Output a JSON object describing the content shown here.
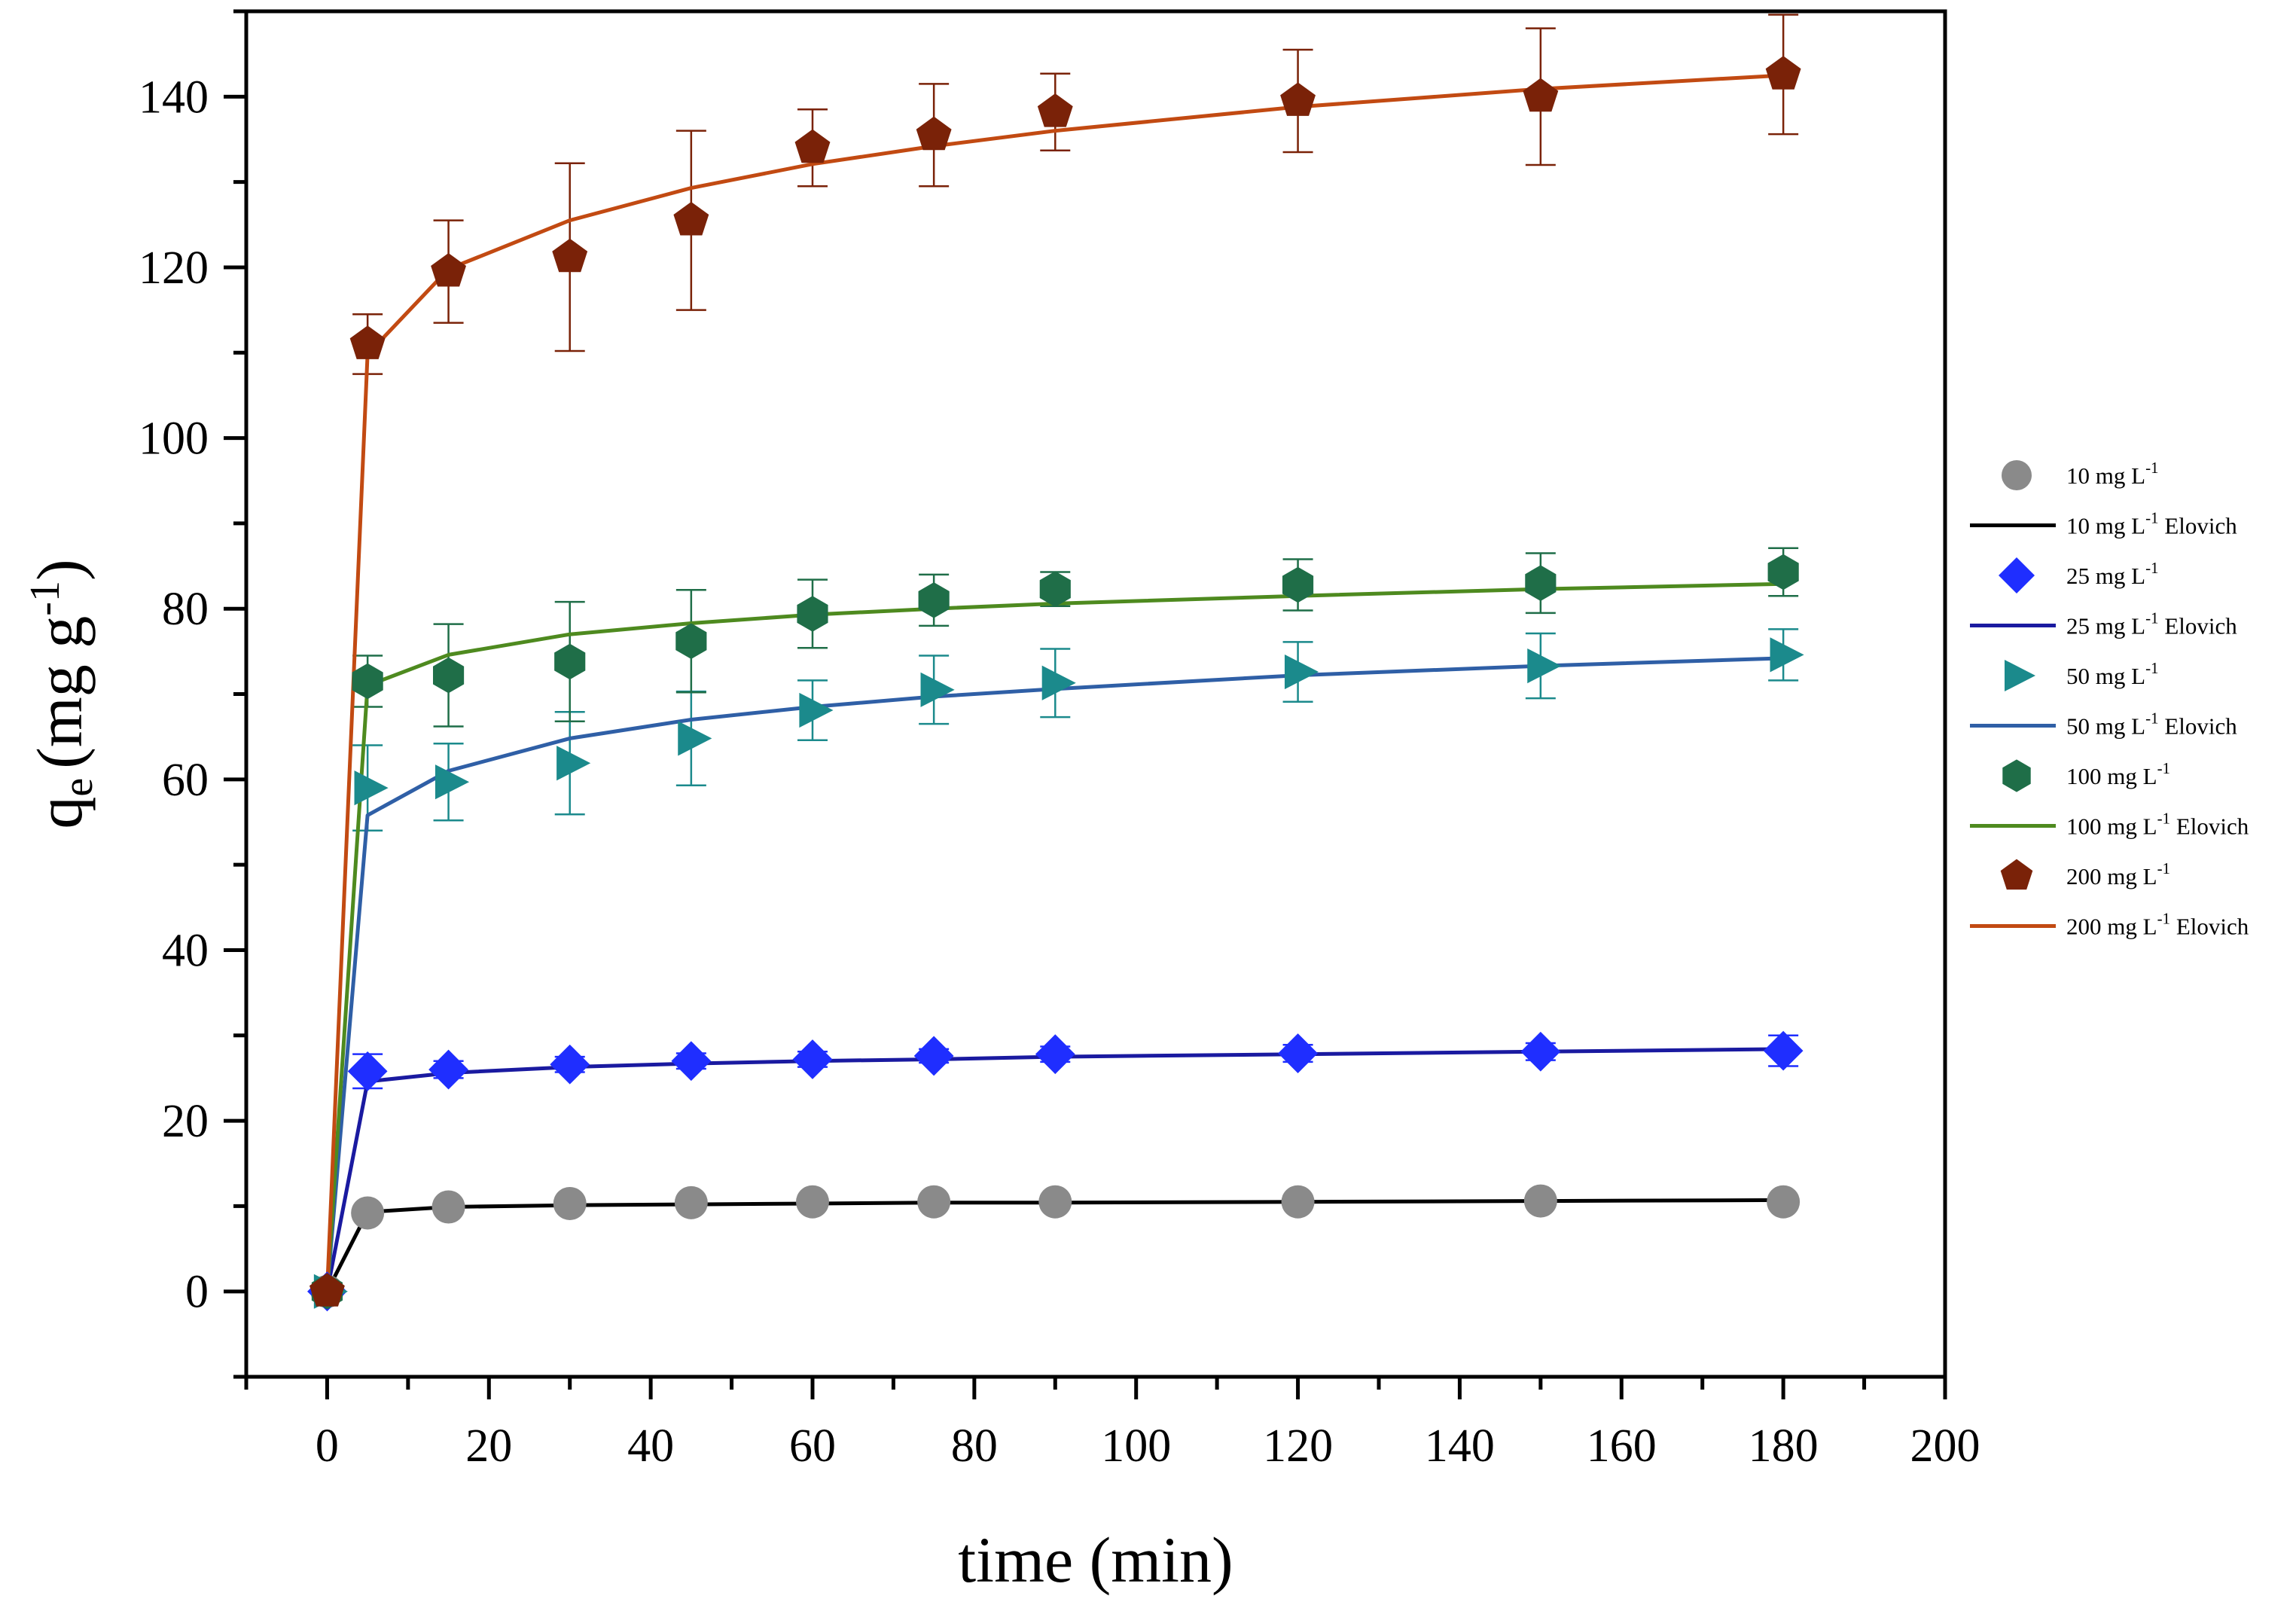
{
  "chart_data": {
    "type": "scatter",
    "title": "",
    "xlabel": "time (min)",
    "ylabel": {
      "main": "q",
      "sub": "e",
      "units_open": "(mg g",
      "units_sup": "-1",
      "units_close": ")"
    },
    "xlim": [
      -10,
      200
    ],
    "ylim": [
      -10,
      150
    ],
    "xticks": [
      0,
      20,
      40,
      60,
      80,
      100,
      120,
      140,
      160,
      180,
      200
    ],
    "yticks": [
      0,
      20,
      40,
      60,
      80,
      100,
      120,
      140
    ],
    "legend_position": "right",
    "x": [
      0,
      5,
      15,
      30,
      45,
      60,
      75,
      90,
      120,
      150,
      180
    ],
    "series": [
      {
        "name": "10 mg L-1",
        "legend_label": {
          "text": "10 mg L",
          "sup": "-1",
          "suffix": ""
        },
        "fit_label": {
          "text": "10 mg L",
          "sup": "-1",
          "suffix": " Elovich"
        },
        "marker": "circle",
        "color": "#8a8a8a",
        "line_color": "#000000",
        "values": [
          0,
          9.2,
          9.9,
          10.3,
          10.4,
          10.5,
          10.5,
          10.5,
          10.5,
          10.6,
          10.5
        ],
        "errors": [
          0,
          0,
          0,
          0,
          0,
          0,
          0,
          0,
          0,
          0,
          0
        ],
        "fit": [
          0,
          9.3,
          9.9,
          10.1,
          10.2,
          10.3,
          10.4,
          10.4,
          10.5,
          10.6,
          10.7
        ]
      },
      {
        "name": "25 mg L-1",
        "legend_label": {
          "text": "25 mg L",
          "sup": "-1",
          "suffix": ""
        },
        "fit_label": {
          "text": "25 mg L",
          "sup": "-1",
          "suffix": " Elovich"
        },
        "marker": "diamond",
        "color": "#1f2eff",
        "line_color": "#1a1aa0",
        "values": [
          0,
          25.8,
          26.0,
          26.6,
          27.0,
          27.2,
          27.6,
          27.8,
          27.9,
          28.1,
          28.2
        ],
        "errors": [
          0,
          2.0,
          1.0,
          0.9,
          0.9,
          0.9,
          0.8,
          0.9,
          1.0,
          1.0,
          1.8
        ],
        "fit": [
          0,
          24.6,
          25.6,
          26.3,
          26.7,
          27.0,
          27.2,
          27.5,
          27.8,
          28.1,
          28.4
        ]
      },
      {
        "name": "50 mg L-1",
        "legend_label": {
          "text": "50 mg L",
          "sup": "-1",
          "suffix": ""
        },
        "fit_label": {
          "text": "50 mg L",
          "sup": "-1",
          "suffix": " Elovich"
        },
        "marker": "triangle-right",
        "color": "#1b8a8c",
        "line_color": "#2f5fa6",
        "values": [
          0,
          59.0,
          59.7,
          61.9,
          64.8,
          68.1,
          70.5,
          71.3,
          72.6,
          73.3,
          74.6
        ],
        "errors": [
          0,
          5.0,
          4.5,
          6.0,
          5.5,
          3.5,
          4.0,
          4.0,
          3.5,
          3.8,
          3.0
        ],
        "fit": [
          0,
          55.8,
          61.0,
          64.8,
          67.0,
          68.5,
          69.7,
          70.6,
          72.2,
          73.3,
          74.2
        ]
      },
      {
        "name": "100 mg L-1",
        "legend_label": {
          "text": "100 mg L",
          "sup": "-1",
          "suffix": ""
        },
        "fit_label": {
          "text": "100 mg L",
          "sup": "-1",
          "suffix": " Elovich"
        },
        "marker": "hexagon",
        "color": "#1f6e48",
        "line_color": "#4e8a1f",
        "values": [
          0,
          71.5,
          72.2,
          73.8,
          76.2,
          79.4,
          81.0,
          82.3,
          82.8,
          83.0,
          84.3
        ],
        "errors": [
          0,
          3.0,
          6.0,
          7.0,
          6.0,
          4.0,
          3.0,
          2.0,
          3.0,
          3.5,
          2.8
        ],
        "fit": [
          0,
          71.0,
          74.6,
          77.0,
          78.3,
          79.3,
          80.0,
          80.6,
          81.5,
          82.3,
          82.9
        ]
      },
      {
        "name": "200 mg L-1",
        "legend_label": {
          "text": "200 mg L",
          "sup": "-1",
          "suffix": ""
        },
        "fit_label": {
          "text": "200 mg L",
          "sup": "-1",
          "suffix": " Elovich"
        },
        "marker": "pentagon",
        "color": "#7a2208",
        "line_color": "#c24a12",
        "values": [
          0,
          111.0,
          119.5,
          121.2,
          125.5,
          134.0,
          135.5,
          138.2,
          139.5,
          140.0,
          142.6
        ],
        "errors": [
          0,
          3.5,
          6.0,
          11.0,
          10.5,
          4.5,
          6.0,
          4.5,
          6.0,
          8.0,
          7.0
        ],
        "fit": [
          0,
          109.8,
          119.8,
          125.5,
          129.3,
          132.1,
          134.2,
          136.0,
          138.8,
          140.9,
          142.5
        ]
      }
    ]
  }
}
